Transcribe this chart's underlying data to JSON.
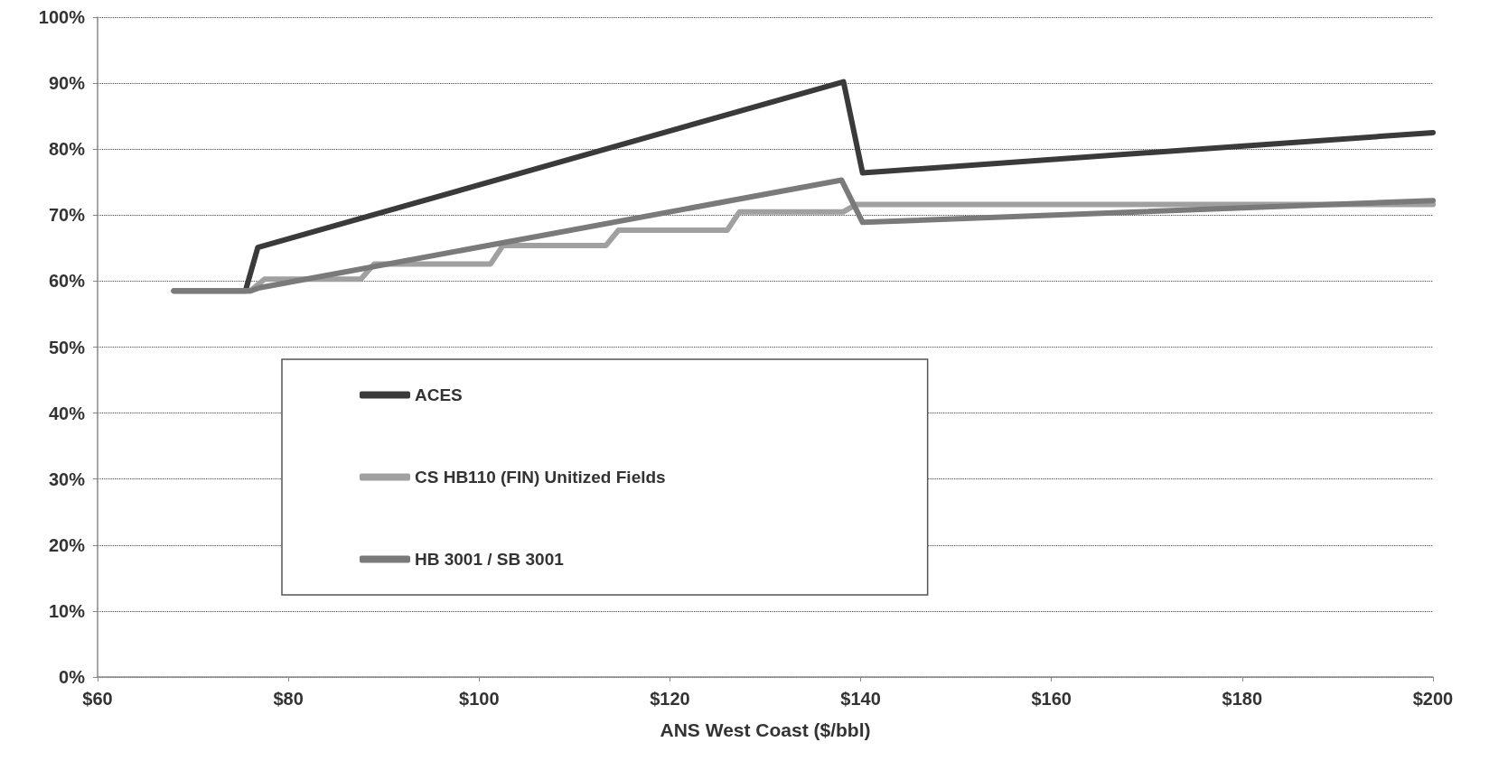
{
  "chart_data": {
    "type": "line",
    "xlabel": "ANS West Coast ($/bbl)",
    "xlim": [
      60,
      200
    ],
    "xticks": [
      {
        "value": 60,
        "label": "$60"
      },
      {
        "value": 80,
        "label": "$80"
      },
      {
        "value": 100,
        "label": "$100"
      },
      {
        "value": 120,
        "label": "$120"
      },
      {
        "value": 140,
        "label": "$140"
      },
      {
        "value": 160,
        "label": "$160"
      },
      {
        "value": 180,
        "label": "$180"
      },
      {
        "value": 200,
        "label": "$200"
      }
    ],
    "ylim": [
      0,
      100
    ],
    "yticks": [
      {
        "value": 0,
        "label": "0%"
      },
      {
        "value": 10,
        "label": "10%"
      },
      {
        "value": 20,
        "label": "20%"
      },
      {
        "value": 30,
        "label": "30%"
      },
      {
        "value": 40,
        "label": "40%"
      },
      {
        "value": 50,
        "label": "50%"
      },
      {
        "value": 60,
        "label": "60%"
      },
      {
        "value": 70,
        "label": "70%"
      },
      {
        "value": 80,
        "label": "80%"
      },
      {
        "value": 90,
        "label": "90%"
      },
      {
        "value": 100,
        "label": "100%"
      }
    ],
    "grid": "y",
    "legend": "bottom left",
    "marker": "none",
    "line_style": "solid",
    "series": [
      {
        "name": "ACES",
        "color": "#3a3a3a",
        "x": [
          68,
          75.5,
          76.8,
          138.2,
          140.2,
          200
        ],
        "values": [
          58.5,
          58.5,
          65.1,
          90.2,
          76.4,
          82.5
        ]
      },
      {
        "name": "CS HB110 (FIN) Unitized Fields",
        "color": "#a0a0a0",
        "x": [
          68,
          76,
          77.5,
          87.6,
          89,
          101.2,
          102.5,
          113.3,
          114.6,
          126,
          127.3,
          138.2,
          139.5,
          200
        ],
        "values": [
          58.5,
          58.5,
          60.3,
          60.3,
          62.6,
          62.6,
          65.4,
          65.4,
          67.7,
          67.7,
          70.5,
          70.5,
          71.6,
          71.6
        ]
      },
      {
        "name": "HB 3001 / SB 3001",
        "color": "#7a7a7a",
        "x": [
          68,
          76,
          77,
          138,
          140.2,
          200
        ],
        "values": [
          58.5,
          58.5,
          59,
          75.3,
          68.9,
          72.2
        ]
      }
    ]
  }
}
